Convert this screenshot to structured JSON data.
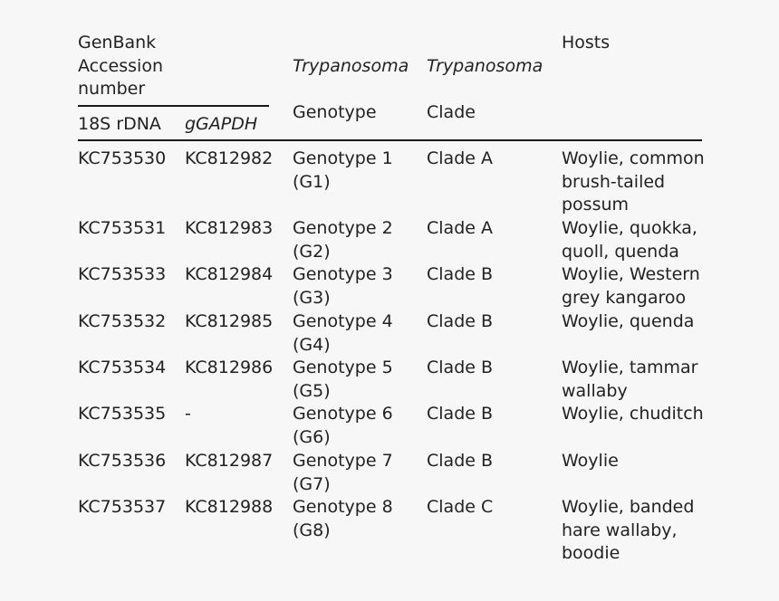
{
  "table": {
    "header": {
      "genbank": "GenBank\nAccession\nnumber",
      "sub_18s": "18S rDNA",
      "sub_ggapdh": "gGAPDH",
      "genotype_italic": "Trypanosoma",
      "genotype_word": "Genotype",
      "clade_italic": "Trypanosoma",
      "clade_word": "Clade",
      "hosts": "Hosts"
    },
    "rows": [
      {
        "rdna": "KC753530",
        "ggapdh": "KC812982",
        "genotype": "Genotype 1\n(G1)",
        "clade": "Clade A",
        "hosts": "Woylie, common\nbrush-tailed\npossum"
      },
      {
        "rdna": "KC753531",
        "ggapdh": "KC812983",
        "genotype": "Genotype 2\n(G2)",
        "clade": "Clade A",
        "hosts": "Woylie, quokka,\nquoll, quenda"
      },
      {
        "rdna": "KC753533",
        "ggapdh": "KC812984",
        "genotype": "Genotype 3\n(G3)",
        "clade": "Clade B",
        "hosts": "Woylie, Western\ngrey kangaroo"
      },
      {
        "rdna": "KC753532",
        "ggapdh": "KC812985",
        "genotype": "Genotype 4\n(G4)",
        "clade": "Clade B",
        "hosts": "Woylie, quenda"
      },
      {
        "rdna": "KC753534",
        "ggapdh": "KC812986",
        "genotype": "Genotype 5\n(G5)",
        "clade": "Clade B",
        "hosts": "Woylie, tammar\nwallaby"
      },
      {
        "rdna": "KC753535",
        "ggapdh": "-",
        "genotype": "Genotype 6\n(G6)",
        "clade": "Clade B",
        "hosts": "Woylie, chuditch"
      },
      {
        "rdna": "KC753536",
        "ggapdh": "KC812987",
        "genotype": "Genotype 7\n(G7)",
        "clade": "Clade B",
        "hosts": "Woylie"
      },
      {
        "rdna": "KC753537",
        "ggapdh": "KC812988",
        "genotype": "Genotype 8\n(G8)",
        "clade": "Clade C",
        "hosts": "Woylie, banded\nhare wallaby,\nboodie"
      }
    ]
  }
}
